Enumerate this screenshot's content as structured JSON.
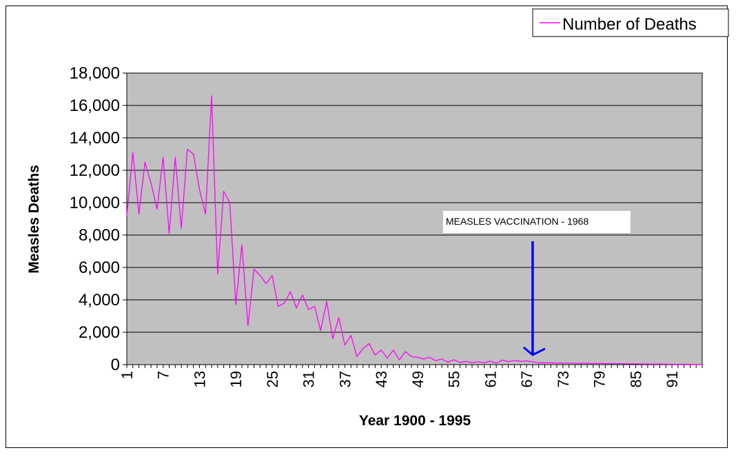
{
  "chart_data": {
    "type": "line",
    "title": "",
    "xlabel": "Year 1900 - 1995",
    "ylabel": "Measles Deaths",
    "ylim": [
      0,
      18000
    ],
    "y_ticks": [
      "0",
      "2,000",
      "4,000",
      "6,000",
      "8,000",
      "10,000",
      "12,000",
      "14,000",
      "16,000",
      "18,000"
    ],
    "x_ticks": [
      "1",
      "7",
      "13",
      "19",
      "25",
      "31",
      "37",
      "43",
      "49",
      "55",
      "61",
      "67",
      "73",
      "79",
      "85",
      "91"
    ],
    "grid": true,
    "legend_position": "top-right",
    "plot_background": "#c0c0c0",
    "series": [
      {
        "name": "Number of Deaths",
        "color": "#ff00ff",
        "x": [
          1,
          2,
          3,
          4,
          5,
          6,
          7,
          8,
          9,
          10,
          11,
          12,
          13,
          14,
          15,
          16,
          17,
          18,
          19,
          20,
          21,
          22,
          23,
          24,
          25,
          26,
          27,
          28,
          29,
          30,
          31,
          32,
          33,
          34,
          35,
          36,
          37,
          38,
          39,
          40,
          41,
          42,
          43,
          44,
          45,
          46,
          47,
          48,
          49,
          50,
          51,
          52,
          53,
          54,
          55,
          56,
          57,
          58,
          59,
          60,
          61,
          62,
          63,
          64,
          65,
          66,
          67,
          68,
          69,
          70,
          71,
          72,
          73,
          74,
          75,
          76,
          77,
          78,
          79,
          80,
          81,
          82,
          83,
          84,
          85,
          86,
          87,
          88,
          89,
          90,
          91,
          92,
          93,
          94,
          95,
          96
        ],
        "values": [
          9200,
          13100,
          9300,
          12500,
          11200,
          9600,
          12800,
          8100,
          12800,
          8400,
          13300,
          13000,
          10800,
          9300,
          16600,
          5600,
          10700,
          10000,
          3700,
          7400,
          2400,
          5900,
          5500,
          5000,
          5500,
          3600,
          3800,
          4500,
          3500,
          4300,
          3400,
          3600,
          2100,
          3900,
          1600,
          2900,
          1200,
          1800,
          500,
          1000,
          1300,
          600,
          900,
          400,
          900,
          300,
          800,
          500,
          450,
          350,
          450,
          250,
          350,
          150,
          300,
          130,
          200,
          120,
          180,
          110,
          220,
          90,
          280,
          180,
          260,
          200,
          230,
          180,
          110,
          110,
          110,
          100,
          90,
          90,
          80,
          80,
          80,
          70,
          70,
          70,
          60,
          60,
          60,
          50,
          50,
          40,
          40,
          30,
          40,
          30,
          20,
          20,
          20,
          20,
          10,
          10
        ]
      }
    ],
    "annotations": [
      {
        "text": "MEASLES VACCINATION - 1968",
        "arrow_x": 68,
        "arrow_y": 600,
        "arrow_color": "#0000ff"
      }
    ]
  }
}
